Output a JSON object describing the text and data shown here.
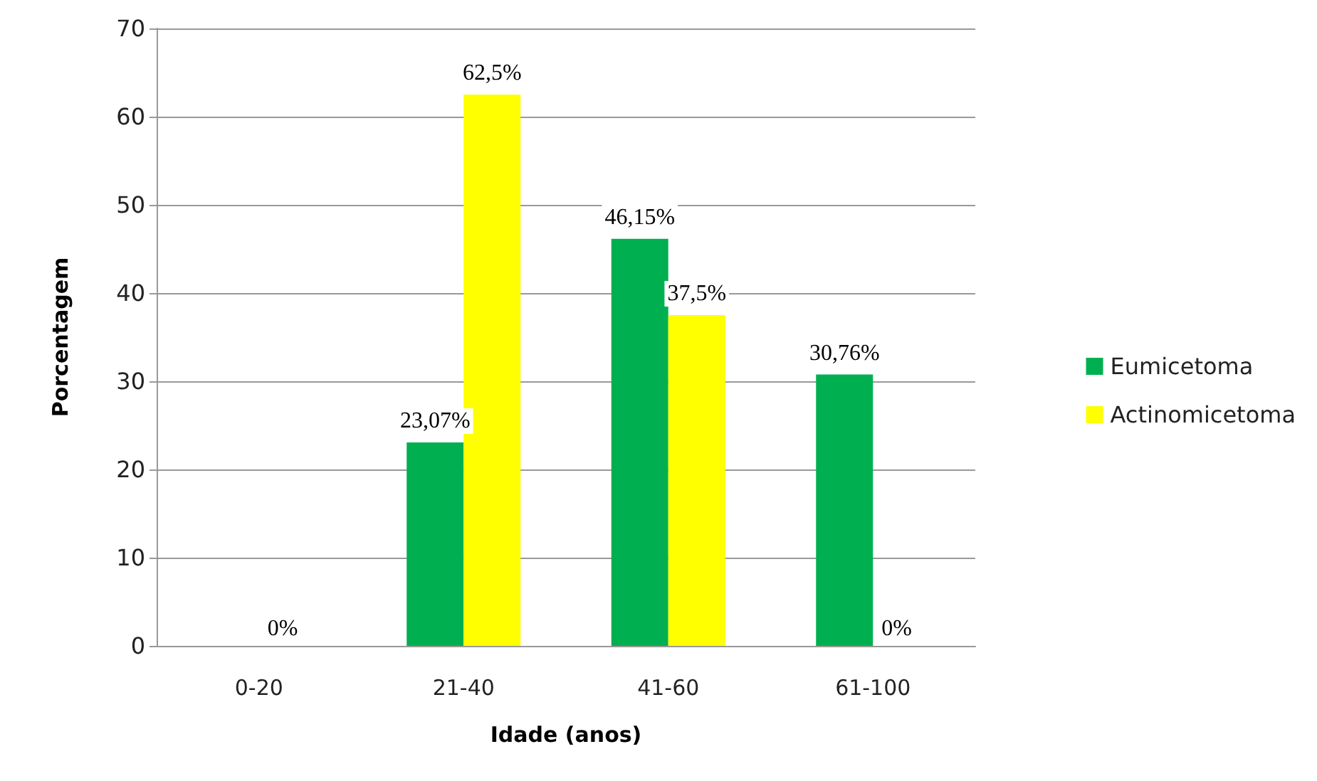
{
  "chart_data": {
    "type": "bar",
    "xlabel": "Idade (anos)",
    "ylabel": "Porcentagem",
    "categories": [
      "0-20",
      "21-40",
      "41-60",
      "61-100"
    ],
    "series": [
      {
        "name": "Eumicetoma",
        "color": "#00b050",
        "values": [
          0,
          23.07,
          46.15,
          30.76
        ],
        "value_labels": [
          null,
          "23,07%",
          "46,15%",
          "30,76%"
        ]
      },
      {
        "name": "Actinomicetoma",
        "color": "#ffff00",
        "values": [
          0,
          62.5,
          37.5,
          0
        ],
        "value_labels": [
          null,
          "62,5%",
          "37,5%",
          null
        ]
      }
    ],
    "annotations": [
      {
        "text": "0%",
        "x": "0-20",
        "y": 0
      },
      {
        "text": "0%",
        "x": "61-100",
        "y": 0
      }
    ],
    "ylim": [
      0,
      70
    ],
    "yticks": [
      0,
      10,
      20,
      30,
      40,
      50,
      60,
      70
    ],
    "grid": "y",
    "legend": "right"
  }
}
